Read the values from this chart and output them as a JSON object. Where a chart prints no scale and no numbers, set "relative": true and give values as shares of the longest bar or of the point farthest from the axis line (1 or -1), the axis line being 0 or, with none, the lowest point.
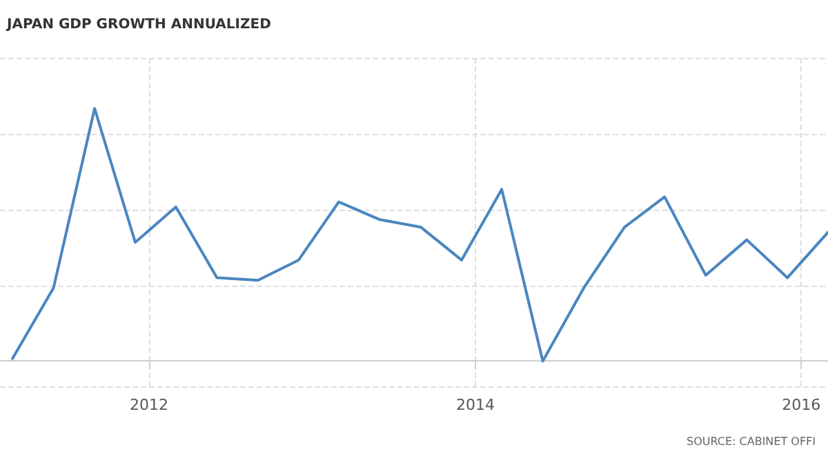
{
  "chart_data": {
    "type": "line",
    "title": "JAPAN GDP GROWTH ANNUALIZED",
    "relative": true,
    "x": [
      "2011-03",
      "2011-06",
      "2011-09",
      "2011-12",
      "2012-03",
      "2012-06",
      "2012-09",
      "2012-12",
      "2013-03",
      "2013-06",
      "2013-09",
      "2013-12",
      "2014-03",
      "2014-06",
      "2014-09",
      "2014-12",
      "2015-03",
      "2015-06",
      "2015-09",
      "2015-12",
      "2016-03"
    ],
    "series": [
      {
        "color": "#4a86c0",
        "values": [
          0.01,
          0.29,
          1,
          0.47,
          0.61,
          0.33,
          0.32,
          0.4,
          0.63,
          0.56,
          0.53,
          0.4,
          0.68,
          0,
          0.29,
          0.53,
          0.65,
          0.34,
          0.48,
          0.33,
          0.51
        ]
      }
    ],
    "xlim": [
      "2011-02",
      "2016-03"
    ],
    "xticks": [
      "2012",
      "2014",
      "2016"
    ],
    "grid": true,
    "marker": "none",
    "line_style": "solid",
    "annotations": [
      "SOURCE: CABINET OFFI"
    ]
  }
}
